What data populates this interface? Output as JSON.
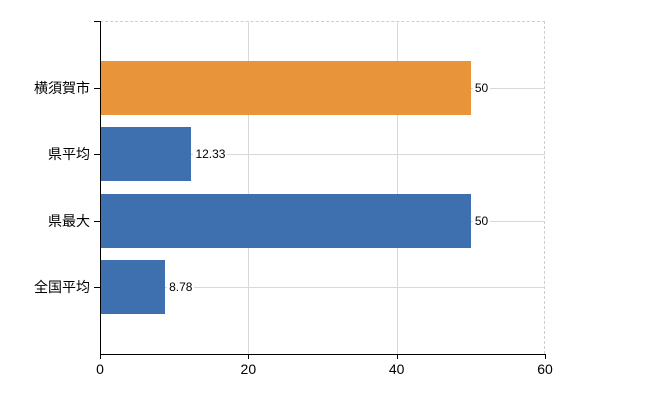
{
  "chart_data": {
    "type": "bar",
    "orientation": "horizontal",
    "title": "",
    "categories": [
      "横須賀市",
      "県平均",
      "県最大",
      "全国平均"
    ],
    "values": [
      50,
      12.33,
      50,
      8.78
    ],
    "value_labels": [
      "50",
      "12.33",
      "50",
      "8.78"
    ],
    "bar_colors": [
      "#E8943A",
      "#3E70AF",
      "#3E70AF",
      "#3E70AF"
    ],
    "xlim": [
      0,
      60
    ],
    "xticks": [
      0,
      20,
      40,
      60
    ],
    "xtick_labels": [
      "0",
      "20",
      "40",
      "60"
    ],
    "grid": true,
    "legend": "none",
    "background_color": "#FFFFFF",
    "gridline_color": "#D9D9D9",
    "border_dash_color": "#CFCFCF",
    "axis_color": "#000000",
    "text_color": "#000000"
  }
}
